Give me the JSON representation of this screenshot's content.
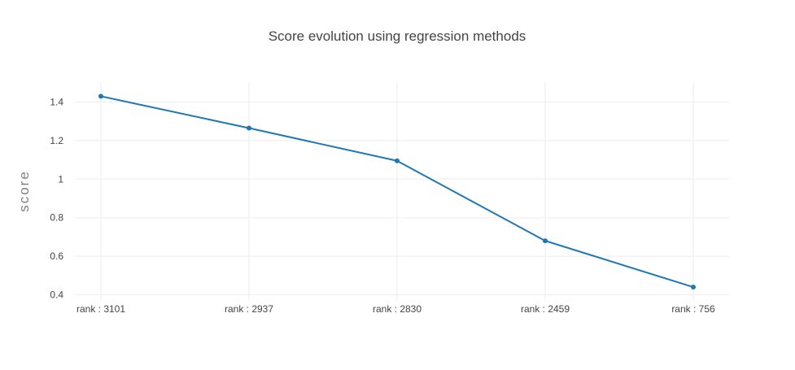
{
  "chart_data": {
    "type": "line",
    "title": "Score evolution using regression methods",
    "xlabel": "",
    "ylabel": "score",
    "categories": [
      "rank : 3101",
      "rank : 2937",
      "rank : 2830",
      "rank : 2459",
      "rank : 756"
    ],
    "series": [
      {
        "values": [
          1.43,
          1.265,
          1.095,
          0.68,
          0.44
        ],
        "color": "#1f77b4"
      }
    ],
    "ylim": [
      0.38,
      1.5
    ],
    "yticks": [
      0.4,
      0.6,
      0.8,
      1,
      1.2,
      1.4
    ],
    "ytick_labels": [
      "0.4",
      "0.6",
      "0.8",
      "1",
      "1.2",
      "1.4"
    ],
    "grid": true,
    "legend": "none"
  }
}
